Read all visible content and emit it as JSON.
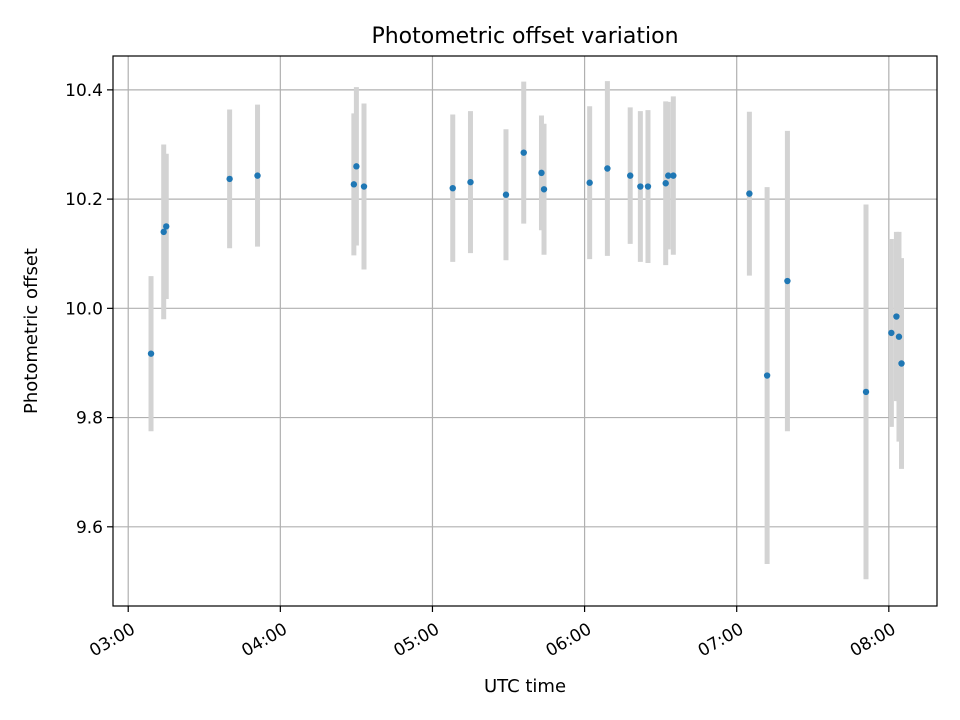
{
  "chart_data": {
    "type": "scatter",
    "title": "Photometric offset variation",
    "xlabel": "UTC time",
    "ylabel": "Photometric offset",
    "xlim": [
      "02:54",
      "08:19"
    ],
    "ylim": [
      9.455,
      10.462
    ],
    "x_ticks": [
      "03:00",
      "04:00",
      "05:00",
      "06:00",
      "07:00",
      "08:00"
    ],
    "y_ticks": [
      9.6,
      9.8,
      10.0,
      10.2,
      10.4
    ],
    "y_tick_labels": [
      "9.6",
      "9.8",
      "10.0",
      "10.2",
      "10.4"
    ],
    "grid": true,
    "colors": {
      "points": "#1f77b4",
      "errorbars": "#d3d3d3",
      "grid": "#b0b0b0"
    },
    "points": [
      {
        "x": "03:09",
        "y": 9.917,
        "err": 0.142
      },
      {
        "x": "03:14",
        "y": 10.14,
        "err": 0.16
      },
      {
        "x": "03:15",
        "y": 10.15,
        "err": 0.133
      },
      {
        "x": "03:40",
        "y": 10.237,
        "err": 0.127
      },
      {
        "x": "03:51",
        "y": 10.243,
        "err": 0.13
      },
      {
        "x": "04:29",
        "y": 10.227,
        "err": 0.13
      },
      {
        "x": "04:30",
        "y": 10.26,
        "err": 0.145
      },
      {
        "x": "04:33",
        "y": 10.223,
        "err": 0.152
      },
      {
        "x": "05:08",
        "y": 10.22,
        "err": 0.135
      },
      {
        "x": "05:15",
        "y": 10.231,
        "err": 0.13
      },
      {
        "x": "05:29",
        "y": 10.208,
        "err": 0.12
      },
      {
        "x": "05:36",
        "y": 10.285,
        "err": 0.13
      },
      {
        "x": "05:43",
        "y": 10.248,
        "err": 0.105
      },
      {
        "x": "05:44",
        "y": 10.218,
        "err": 0.12
      },
      {
        "x": "06:02",
        "y": 10.23,
        "err": 0.14
      },
      {
        "x": "06:09",
        "y": 10.256,
        "err": 0.16
      },
      {
        "x": "06:18",
        "y": 10.243,
        "err": 0.125
      },
      {
        "x": "06:22",
        "y": 10.223,
        "err": 0.138
      },
      {
        "x": "06:25",
        "y": 10.223,
        "err": 0.14
      },
      {
        "x": "06:32",
        "y": 10.229,
        "err": 0.15
      },
      {
        "x": "06:33",
        "y": 10.243,
        "err": 0.135
      },
      {
        "x": "06:35",
        "y": 10.243,
        "err": 0.145
      },
      {
        "x": "07:05",
        "y": 10.21,
        "err": 0.15
      },
      {
        "x": "07:12",
        "y": 9.877,
        "err": 0.345
      },
      {
        "x": "07:20",
        "y": 10.05,
        "err": 0.275
      },
      {
        "x": "07:51",
        "y": 9.847,
        "err": 0.343
      },
      {
        "x": "08:01",
        "y": 9.955,
        "err": 0.172
      },
      {
        "x": "08:03",
        "y": 9.985,
        "err": 0.155
      },
      {
        "x": "08:04",
        "y": 9.948,
        "err": 0.192
      },
      {
        "x": "08:05",
        "y": 9.899,
        "err": 0.193
      }
    ]
  }
}
